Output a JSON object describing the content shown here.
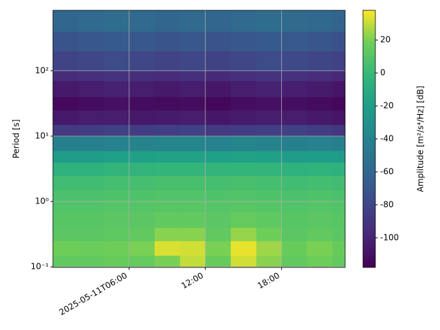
{
  "chart_data": {
    "type": "heatmap",
    "y_label": "Period [s]",
    "colorbar_label": "Amplitude [m²/s⁴/Hz] [dB]",
    "colormap": "viridis",
    "y_scale": "log",
    "grid": true,
    "xlim": [
      "2025-05-11T00:00",
      "2025-05-11T23:00"
    ],
    "xticks": [
      "2025-05-11T06:00",
      {
        "value": "2025-05-11T12:00",
        "label": "12:00"
      },
      {
        "value": "2025-05-11T18:00",
        "label": "18:00"
      }
    ],
    "ylim": [
      0.098,
      840
    ],
    "yticks": [
      {
        "value": 0.1,
        "label": "10⁻¹"
      },
      {
        "value": 1,
        "label": "10⁰"
      },
      {
        "value": 10,
        "label": "10¹"
      },
      {
        "value": 100,
        "label": "10²"
      }
    ],
    "clim": [
      -118,
      38
    ],
    "cticks": [
      -100,
      -80,
      -60,
      -40,
      -20,
      0,
      20
    ],
    "x_edges": [
      "2025-05-11T00:00",
      "2025-05-11T02:00",
      "2025-05-11T04:00",
      "2025-05-11T06:00",
      "2025-05-11T08:00",
      "2025-05-11T10:00",
      "2025-05-11T12:00",
      "2025-05-11T14:00",
      "2025-05-11T16:00",
      "2025-05-11T18:00",
      "2025-05-11T20:00",
      "2025-05-11T22:00",
      "2025-05-11T23:00"
    ],
    "y_edges": [
      0.098,
      0.15,
      0.25,
      0.4,
      0.7,
      1,
      1.5,
      2.5,
      4,
      6,
      10,
      15,
      25,
      40,
      70,
      100,
      200,
      400,
      840
    ],
    "values": [
      [
        14,
        14,
        16,
        15,
        20,
        30,
        16,
        32,
        22,
        14,
        18,
        14
      ],
      [
        18,
        17,
        18,
        20,
        33,
        32,
        20,
        35,
        25,
        16,
        20,
        16
      ],
      [
        12,
        12,
        13,
        14,
        22,
        22,
        14,
        24,
        18,
        12,
        14,
        12
      ],
      [
        11,
        11,
        12,
        12,
        14,
        14,
        12,
        15,
        13,
        11,
        12,
        11
      ],
      [
        9,
        9,
        10,
        10,
        11,
        11,
        10,
        11,
        10,
        9,
        10,
        9
      ],
      [
        7,
        7,
        8,
        8,
        9,
        9,
        8,
        9,
        8,
        7,
        8,
        7
      ],
      [
        3,
        3,
        5,
        5,
        6,
        6,
        5,
        6,
        5,
        3,
        4,
        3
      ],
      [
        -6,
        -6,
        -4,
        -4,
        -3,
        -3,
        -4,
        -3,
        -4,
        -6,
        -5,
        -6
      ],
      [
        -22,
        -22,
        -20,
        -19,
        -18,
        -18,
        -19,
        -18,
        -19,
        -22,
        -21,
        -22
      ],
      [
        -42,
        -42,
        -40,
        -39,
        -38,
        -38,
        -40,
        -38,
        -39,
        -42,
        -41,
        -42
      ],
      [
        -88,
        -86,
        -84,
        -86,
        -85,
        -84,
        -88,
        -86,
        -85,
        -84,
        -86,
        -90
      ],
      [
        -106,
        -104,
        -104,
        -106,
        -105,
        -104,
        -107,
        -105,
        -104,
        -104,
        -106,
        -108
      ],
      [
        -114,
        -112,
        -110,
        -112,
        -113,
        -112,
        -115,
        -112,
        -110,
        -111,
        -113,
        -115
      ],
      [
        -106,
        -104,
        -102,
        -104,
        -106,
        -104,
        -107,
        -104,
        -102,
        -103,
        -105,
        -108
      ],
      [
        -96,
        -94,
        -92,
        -95,
        -96,
        -94,
        -97,
        -94,
        -92,
        -93,
        -95,
        -98
      ],
      [
        -82,
        -80,
        -78,
        -80,
        -82,
        -80,
        -83,
        -80,
        -78,
        -79,
        -81,
        -84
      ],
      [
        -72,
        -70,
        -68,
        -70,
        -72,
        -70,
        -73,
        -70,
        -68,
        -69,
        -71,
        -74
      ],
      [
        -60,
        -58,
        -56,
        -58,
        -60,
        -58,
        -61,
        -58,
        -56,
        -57,
        -59,
        -62
      ]
    ]
  }
}
